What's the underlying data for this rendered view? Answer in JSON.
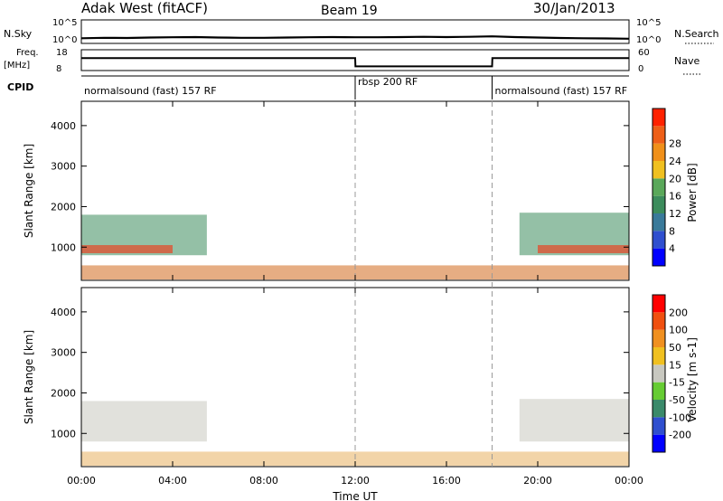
{
  "header": {
    "radar": "Adak West (fitACF)",
    "beam": "Beam 19",
    "date": "30/Jan/2013"
  },
  "chart_data": [
    {
      "id": "nsky-nsearch",
      "type": "line",
      "left_label": "N.Sky",
      "right_label": "N.Search",
      "left_ticks": [
        "10^5",
        "10^0"
      ],
      "right_ticks": [
        "10^5",
        "10^0"
      ],
      "x": [
        0,
        1,
        2,
        3,
        4,
        5,
        6,
        7,
        8,
        9,
        10,
        11,
        12,
        13,
        14,
        15,
        16,
        17,
        18,
        19,
        20,
        21,
        22,
        23,
        24
      ],
      "series": [
        {
          "values": [
            0.22,
            0.24,
            0.23,
            0.25,
            0.26,
            0.27,
            0.25,
            0.24,
            0.24,
            0.25,
            0.26,
            0.27,
            0.26,
            0.26,
            0.27,
            0.28,
            0.27,
            0.28,
            0.3,
            0.27,
            0.25,
            0.23,
            0.22,
            0.21,
            0.2
          ]
        }
      ]
    },
    {
      "id": "freq-nave",
      "type": "line",
      "left_label": "Freq.",
      "left_unit": "[MHz]",
      "right_label": "Nave",
      "left_ticks": [
        "18",
        "8"
      ],
      "right_ticks": [
        "60",
        "0"
      ],
      "x": [
        0,
        12,
        12.01,
        18,
        18.01,
        24
      ],
      "series": [
        {
          "values": [
            0.6,
            0.6,
            0.2,
            0.2,
            0.6,
            0.6
          ]
        }
      ]
    },
    {
      "id": "cpid",
      "type": "table",
      "label": "CPID",
      "segments": [
        {
          "start": 0,
          "end": 12,
          "text": "normalsound (fast) 157 RF"
        },
        {
          "start": 12,
          "end": 18,
          "text": "rbsp 200 RF"
        },
        {
          "start": 18,
          "end": 24,
          "text": "normalsound (fast) 157 RF"
        }
      ]
    },
    {
      "id": "power",
      "type": "heatmap",
      "ylabel": "Slant Range [km]",
      "ylim": [
        180,
        4600
      ],
      "yticks": [
        1000,
        2000,
        3000,
        4000
      ],
      "colorbar": {
        "label": "Power [dB]",
        "ticks": [
          "4",
          "8",
          "12",
          "16",
          "20",
          "24",
          "28"
        ],
        "colors": [
          "#0000ff",
          "#2f4fcf",
          "#3a7a9a",
          "#3c8c5c",
          "#5aa85a",
          "#f0c020",
          "#f0901a",
          "#ee5f18",
          "#ff2200"
        ]
      },
      "bands": [
        {
          "t0": 0.0,
          "t1": 5.5,
          "r0": 800,
          "r1": 1800,
          "color": "#3c8c5c"
        },
        {
          "t0": 0.0,
          "t1": 4.0,
          "r0": 850,
          "r1": 1050,
          "color": "#ff2200"
        },
        {
          "t0": 19.2,
          "t1": 24.0,
          "r0": 800,
          "r1": 1850,
          "color": "#3c8c5c"
        },
        {
          "t0": 20.0,
          "t1": 24.0,
          "r0": 850,
          "r1": 1050,
          "color": "#ff2200"
        },
        {
          "t0": 0.0,
          "t1": 24.0,
          "r0": 200,
          "r1": 550,
          "color": "#d2691e"
        }
      ]
    },
    {
      "id": "velocity",
      "type": "heatmap",
      "ylabel": "Slant Range [km]",
      "ylim": [
        180,
        4600
      ],
      "yticks": [
        1000,
        2000,
        3000,
        4000
      ],
      "colorbar": {
        "label": "Velocity [m s-1]",
        "ticks": [
          "200",
          "100",
          "50",
          "15",
          "-15",
          "-50",
          "-100",
          "-200"
        ],
        "colors": [
          "#0000ff",
          "#2f4fcf",
          "#3a8a6a",
          "#66cc33",
          "#c8c8c0",
          "#f0c020",
          "#f09020",
          "#f05010",
          "#ff0000"
        ]
      },
      "bands": [
        {
          "t0": 0.0,
          "t1": 5.5,
          "r0": 800,
          "r1": 1800,
          "color": "#c8c8c0"
        },
        {
          "t0": 19.2,
          "t1": 24.0,
          "r0": 800,
          "r1": 1850,
          "color": "#c8c8c0"
        },
        {
          "t0": 0.0,
          "t1": 24.0,
          "r0": 200,
          "r1": 550,
          "color": "#e8b060"
        }
      ],
      "xlabel": "Time UT",
      "xticks": [
        "00:00",
        "04:00",
        "08:00",
        "12:00",
        "16:00",
        "20:00",
        "00:00"
      ],
      "xlim": [
        0,
        24
      ]
    }
  ]
}
